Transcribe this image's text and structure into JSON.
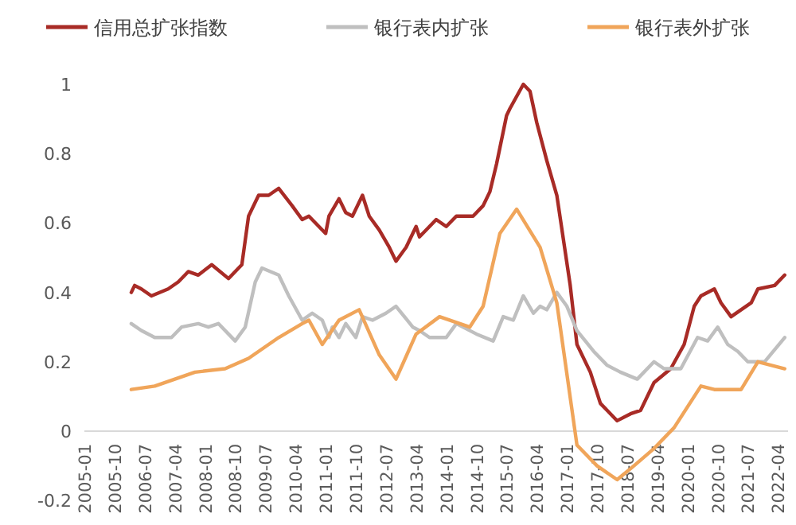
{
  "chart_data": {
    "type": "line",
    "legend": "top",
    "xlim": [
      "2005-01",
      "2022-07"
    ],
    "ylim": [
      -0.2,
      1
    ],
    "yticks": [
      -0.2,
      0,
      0.2,
      0.4,
      0.6,
      0.8,
      1
    ],
    "xticks": [
      {
        "value": "2005-01",
        "label": "2005-01"
      },
      {
        "value": "2005-10",
        "label": "2005-10"
      },
      {
        "value": "2006-07",
        "label": "2006-07"
      },
      {
        "value": "2007-04",
        "label": "2007-04"
      },
      {
        "value": "2008-01",
        "label": "2008-01"
      },
      {
        "value": "2008-10",
        "label": "2008-10"
      },
      {
        "value": "2009-07",
        "label": "2009-07"
      },
      {
        "value": "2010-04",
        "label": "2010-04"
      },
      {
        "value": "2011-01",
        "label": "2011-01"
      },
      {
        "value": "2011-10",
        "label": "2011-10"
      },
      {
        "value": "2012-07",
        "label": "2012-07"
      },
      {
        "value": "2013-04",
        "label": "2013-04"
      },
      {
        "value": "2014-01",
        "label": "2014-01"
      },
      {
        "value": "2014-10",
        "label": "2014-10"
      },
      {
        "value": "2015-07",
        "label": "2015-07"
      },
      {
        "value": "2016-04",
        "label": "2016-04"
      },
      {
        "value": "2017-01",
        "label": "2017-01"
      },
      {
        "value": "2017-10",
        "label": "2017-10"
      },
      {
        "value": "2018-07",
        "label": "2018-07"
      },
      {
        "value": "2019-04",
        "label": "2019-04"
      },
      {
        "value": "2020-01",
        "label": "2020-01"
      },
      {
        "value": "2020-10",
        "label": "2020-10"
      },
      {
        "value": "2021-07",
        "label": "2021-07"
      },
      {
        "value": "2022-04",
        "label": "2022-04"
      }
    ],
    "series": [
      {
        "name": "信用总扩张指数",
        "color": "#a82b26",
        "x": [
          "2006-03",
          "2006-04",
          "2006-06",
          "2006-09",
          "2007-02",
          "2007-05",
          "2007-08",
          "2007-11",
          "2008-03",
          "2008-08",
          "2008-12",
          "2009-02",
          "2009-05",
          "2009-08",
          "2009-11",
          "2010-03",
          "2010-06",
          "2010-08",
          "2011-01",
          "2011-02",
          "2011-05",
          "2011-07",
          "2011-09",
          "2011-12",
          "2012-02",
          "2012-05",
          "2012-08",
          "2012-10",
          "2013-01",
          "2013-04",
          "2013-05",
          "2013-08",
          "2013-10",
          "2014-01",
          "2014-04",
          "2014-08",
          "2014-09",
          "2014-12",
          "2015-02",
          "2015-04",
          "2015-07",
          "2015-08",
          "2015-12",
          "2016-02",
          "2016-04",
          "2016-07",
          "2016-10",
          "2017-02",
          "2017-04",
          "2017-08",
          "2017-11",
          "2018-04",
          "2018-08",
          "2018-11",
          "2019-03",
          "2019-08",
          "2019-12",
          "2020-03",
          "2020-05",
          "2020-09",
          "2020-11",
          "2021-02",
          "2021-05",
          "2021-08",
          "2021-10",
          "2022-03",
          "2022-06"
        ],
        "values": [
          0.4,
          0.42,
          0.41,
          0.39,
          0.41,
          0.43,
          0.46,
          0.45,
          0.48,
          0.44,
          0.48,
          0.62,
          0.68,
          0.68,
          0.7,
          0.65,
          0.61,
          0.62,
          0.57,
          0.62,
          0.67,
          0.63,
          0.62,
          0.68,
          0.62,
          0.58,
          0.53,
          0.49,
          0.53,
          0.59,
          0.56,
          0.59,
          0.61,
          0.59,
          0.62,
          0.62,
          0.62,
          0.65,
          0.69,
          0.77,
          0.91,
          0.93,
          1.0,
          0.98,
          0.89,
          0.78,
          0.68,
          0.42,
          0.25,
          0.17,
          0.08,
          0.03,
          0.05,
          0.06,
          0.14,
          0.18,
          0.25,
          0.36,
          0.39,
          0.41,
          0.37,
          0.33,
          0.35,
          0.37,
          0.41,
          0.42,
          0.45
        ]
      },
      {
        "name": "银行表内扩张",
        "color": "#bfbfbf",
        "x": [
          "2006-03",
          "2006-06",
          "2006-10",
          "2007-03",
          "2007-06",
          "2007-11",
          "2008-02",
          "2008-05",
          "2008-10",
          "2009-01",
          "2009-04",
          "2009-06",
          "2009-11",
          "2010-02",
          "2010-06",
          "2010-09",
          "2010-12",
          "2011-02",
          "2011-03",
          "2011-05",
          "2011-07",
          "2011-10",
          "2011-12",
          "2012-03",
          "2012-07",
          "2012-10",
          "2013-03",
          "2013-05",
          "2013-08",
          "2014-01",
          "2014-04",
          "2014-10",
          "2015-03",
          "2015-06",
          "2015-09",
          "2015-12",
          "2016-03",
          "2016-05",
          "2016-07",
          "2016-10",
          "2017-01",
          "2017-04",
          "2017-09",
          "2018-01",
          "2018-05",
          "2018-10",
          "2019-03",
          "2019-06",
          "2019-11",
          "2020-04",
          "2020-07",
          "2020-10",
          "2021-01",
          "2021-04",
          "2021-07",
          "2021-12",
          "2022-06"
        ],
        "values": [
          0.31,
          0.29,
          0.27,
          0.27,
          0.3,
          0.31,
          0.3,
          0.31,
          0.26,
          0.3,
          0.43,
          0.47,
          0.45,
          0.39,
          0.32,
          0.34,
          0.32,
          0.27,
          0.3,
          0.27,
          0.31,
          0.27,
          0.33,
          0.32,
          0.34,
          0.36,
          0.3,
          0.29,
          0.27,
          0.27,
          0.31,
          0.28,
          0.26,
          0.33,
          0.32,
          0.39,
          0.34,
          0.36,
          0.35,
          0.4,
          0.36,
          0.29,
          0.23,
          0.19,
          0.17,
          0.15,
          0.2,
          0.18,
          0.18,
          0.27,
          0.26,
          0.3,
          0.25,
          0.23,
          0.2,
          0.2,
          0.27
        ]
      },
      {
        "name": "银行表外扩张",
        "color": "#f0a55a",
        "x": [
          "2006-03",
          "2006-10",
          "2007-04",
          "2007-10",
          "2008-07",
          "2009-02",
          "2009-11",
          "2010-06",
          "2010-08",
          "2010-12",
          "2011-05",
          "2011-11",
          "2012-05",
          "2012-10",
          "2013-04",
          "2013-11",
          "2014-08",
          "2014-12",
          "2015-05",
          "2015-10",
          "2016-05",
          "2016-10",
          "2017-04",
          "2017-10",
          "2018-04",
          "2018-09",
          "2019-03",
          "2019-09",
          "2020-05",
          "2020-09",
          "2021-05",
          "2021-10",
          "2022-06"
        ],
        "values": [
          0.12,
          0.13,
          0.15,
          0.17,
          0.18,
          0.21,
          0.27,
          0.31,
          0.32,
          0.25,
          0.32,
          0.35,
          0.22,
          0.15,
          0.28,
          0.33,
          0.3,
          0.36,
          0.57,
          0.64,
          0.53,
          0.37,
          -0.04,
          -0.1,
          -0.14,
          -0.1,
          -0.05,
          0.01,
          0.13,
          0.12,
          0.12,
          0.2,
          0.18
        ]
      }
    ]
  }
}
